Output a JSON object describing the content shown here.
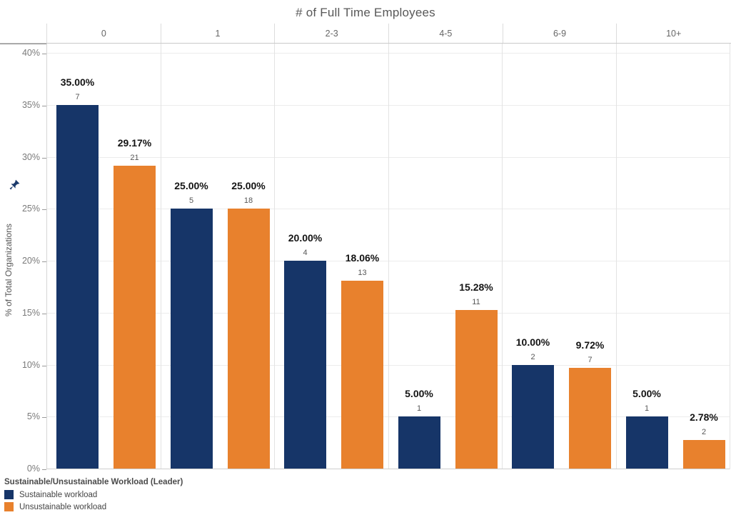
{
  "chart_data": {
    "type": "bar",
    "title": "# of Full Time Employees",
    "xlabel": "# of Full Time Employees",
    "ylabel": "% of Total Organizations",
    "ylim": [
      0,
      40
    ],
    "ytick_step": 5,
    "ytick_labels": [
      "0%",
      "5%",
      "10%",
      "15%",
      "20%",
      "25%",
      "30%",
      "35%",
      "40%"
    ],
    "grid": true,
    "categories": [
      "0",
      "1",
      "2-3",
      "4-5",
      "6-9",
      "10+"
    ],
    "series": [
      {
        "name": "Sustainable workload",
        "color": "#163568",
        "values": [
          35.0,
          25.0,
          20.0,
          5.0,
          10.0,
          5.0
        ],
        "value_labels": [
          "35.00%",
          "25.00%",
          "20.00%",
          "5.00%",
          "10.00%",
          "5.00%"
        ],
        "counts": [
          7,
          5,
          4,
          1,
          2,
          1
        ]
      },
      {
        "name": "Unsustainable workload",
        "color": "#e8812d",
        "values": [
          29.17,
          25.0,
          18.06,
          15.28,
          9.72,
          2.78
        ],
        "value_labels": [
          "29.17%",
          "25.00%",
          "18.06%",
          "15.28%",
          "9.72%",
          "2.78%"
        ],
        "counts": [
          21,
          18,
          13,
          11,
          7,
          2
        ]
      }
    ],
    "legend": {
      "title": "Sustainable/Unsustainable Workload (Leader)",
      "position": "bottom-left"
    },
    "pinned_axis_icon": "pushpin-icon"
  }
}
